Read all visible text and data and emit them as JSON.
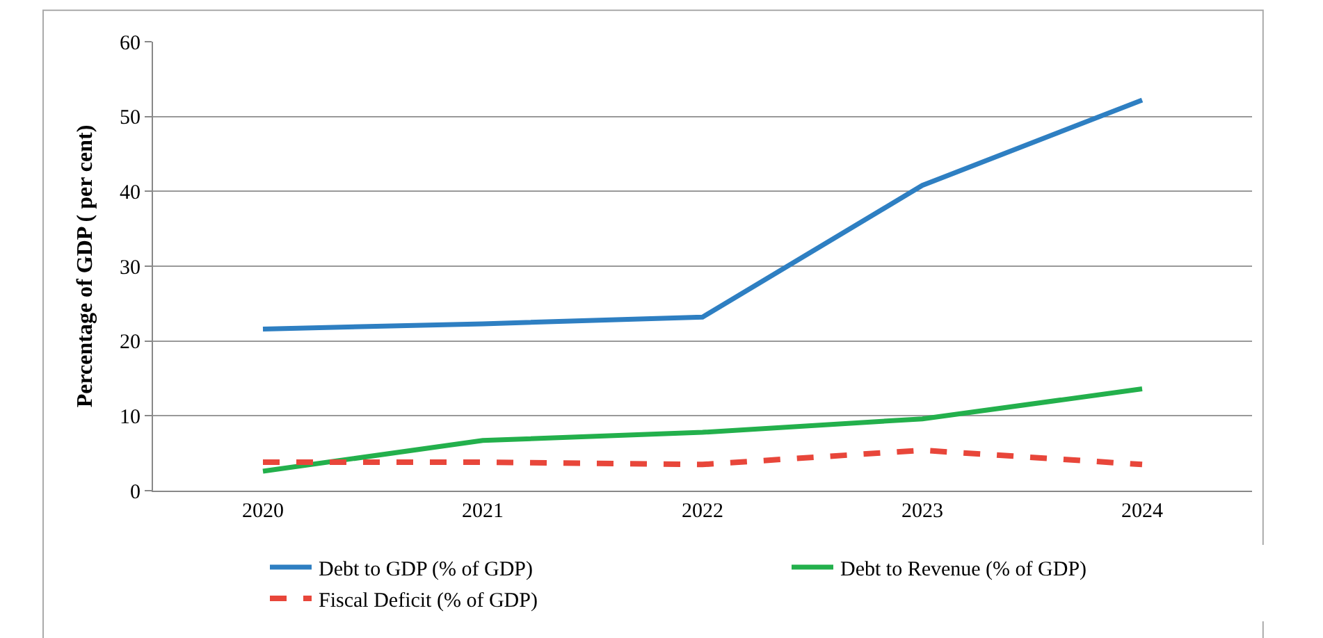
{
  "chart_data": {
    "type": "line",
    "ylabel": "Percentage of GDP ( per cent)",
    "categories": [
      "2020",
      "2021",
      "2022",
      "2023",
      "2024"
    ],
    "series": [
      {
        "name": "Debt to GDP (% of GDP)",
        "color": "#2e7fc2",
        "values": [
          21.6,
          22.3,
          23.2,
          40.8,
          52.2
        ]
      },
      {
        "name": "Debt to Revenue (% of GDP)",
        "color": "#23b04c",
        "values": [
          2.6,
          6.7,
          7.8,
          9.6,
          13.6
        ]
      },
      {
        "name": "Fiscal Deficit (% of GDP)",
        "color": "#e8463a",
        "values": [
          3.8,
          3.8,
          3.5,
          5.4,
          3.5
        ],
        "line_style": "dashed"
      }
    ],
    "ylim": [
      0,
      60
    ],
    "yticks": [
      0,
      10,
      20,
      30,
      40,
      50,
      60
    ],
    "grid": "y",
    "legend": "bottom"
  }
}
